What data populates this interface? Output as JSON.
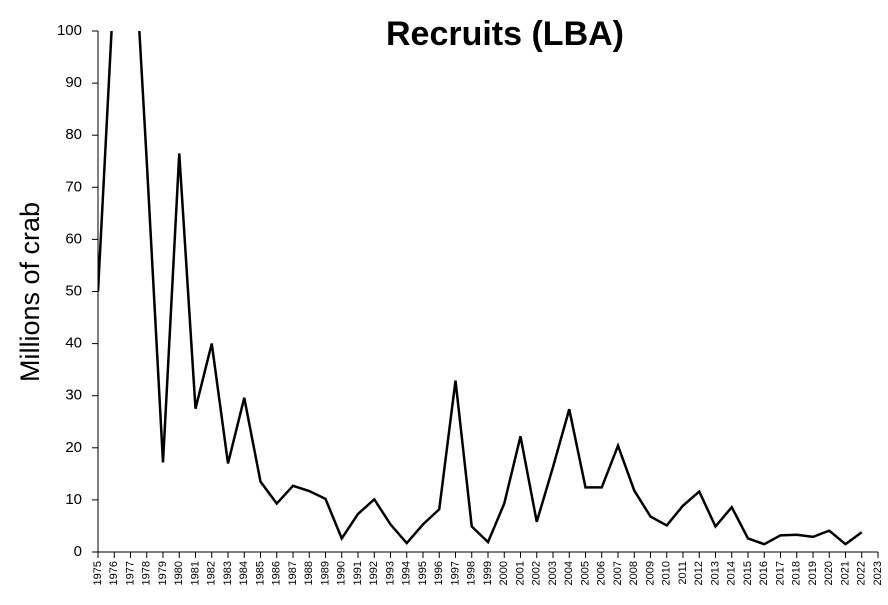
{
  "chart_data": {
    "type": "line",
    "title": "Recruits (LBA)",
    "y_label": "Millions of crab",
    "categories": [
      "1975",
      "1976",
      "1977",
      "1978",
      "1979",
      "1980",
      "1981",
      "1982",
      "1983",
      "1984",
      "1985",
      "1986",
      "1987",
      "1988",
      "1989",
      "1990",
      "1991",
      "1992",
      "1993",
      "1994",
      "1995",
      "1996",
      "1997",
      "1998",
      "1999",
      "2000",
      "2001",
      "2002",
      "2003",
      "2004",
      "2005",
      "2006",
      "2007",
      "2008",
      "2009",
      "2010",
      "2011",
      "2012",
      "2013",
      "2014",
      "2015",
      "2016",
      "2017",
      "2018",
      "2019",
      "2020",
      "2021",
      "2022",
      "2023"
    ],
    "values": [
      50,
      110,
      130,
      75,
      17.2,
      76.5,
      27.5,
      40,
      17,
      29.6,
      13.5,
      9.3,
      12.7,
      11.7,
      10.2,
      2.6,
      7.3,
      10.1,
      5.3,
      1.7,
      5.3,
      8.2,
      32.9,
      4.9,
      1.9,
      9.3,
      22.2,
      5.8,
      16.3,
      27.4,
      12.4,
      12.4,
      20.4,
      11.8,
      6.8,
      5.1,
      8.9,
      11.6,
      4.9,
      8.6,
      2.6,
      1.5,
      3.2,
      3.3,
      2.9,
      4.1,
      1.5,
      3.8,
      null
    ],
    "color": "#000000",
    "ylim": [
      0,
      100
    ],
    "yticks": [
      0,
      10,
      20,
      30,
      40,
      50,
      60,
      70,
      80,
      90,
      100
    ]
  }
}
